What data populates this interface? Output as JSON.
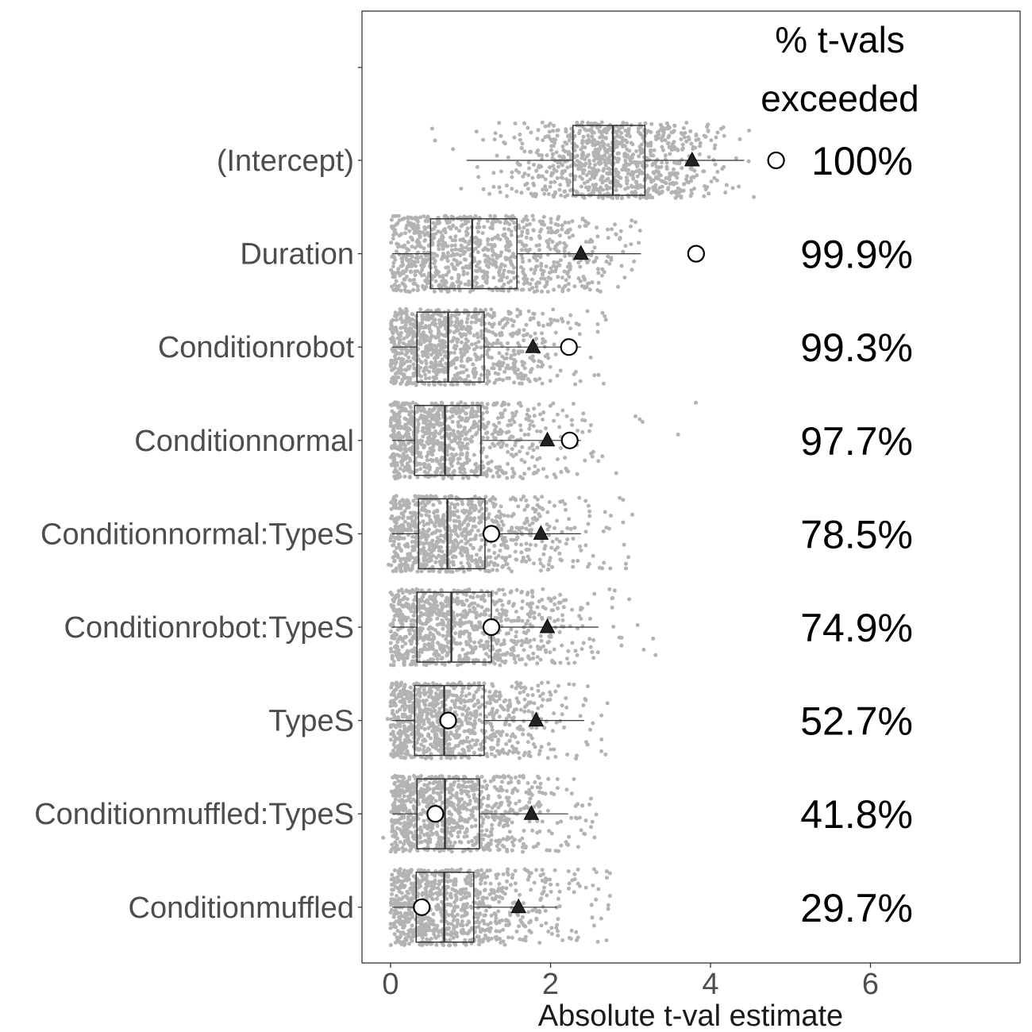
{
  "chart_data": {
    "type": "boxplot",
    "title": "",
    "xlabel": "Absolute t-val estimate",
    "ylabel": "",
    "xlim": [
      -0.35,
      7.85
    ],
    "x_ticks": [
      0,
      2,
      4,
      6
    ],
    "grid": false,
    "legend_title_lines": [
      "% t-vals",
      "exceeded"
    ],
    "colors": {
      "points": "#b3b3b3",
      "box": "#333333",
      "mean_marker": "#222222",
      "observed_marker_fill": "#ffffff",
      "text": "#000000",
      "tick_text": "#4d4d4d"
    },
    "terms": [
      {
        "label": "(Intercept)",
        "q1": 2.28,
        "median": 2.78,
        "q3": 3.18,
        "whisker_lo": 0.95,
        "whisker_hi": 4.42,
        "mean_marker": 3.77,
        "observed": 4.82,
        "spread_lo": 0.02,
        "spread_hi": 4.55,
        "pct_exceeded": "100%"
      },
      {
        "label": "Duration",
        "q1": 0.5,
        "median": 1.02,
        "q3": 1.58,
        "whisker_lo": 0.02,
        "whisker_hi": 3.13,
        "mean_marker": 2.38,
        "observed": 3.82,
        "spread_lo": 0.0,
        "spread_hi": 3.12,
        "pct_exceeded": "99.9%"
      },
      {
        "label": "Conditionrobot",
        "q1": 0.33,
        "median": 0.72,
        "q3": 1.17,
        "whisker_lo": 0.02,
        "whisker_hi": 2.38,
        "mean_marker": 1.78,
        "observed": 2.23,
        "spread_lo": 0.0,
        "spread_hi": 2.7,
        "pct_exceeded": "99.3%"
      },
      {
        "label": "Conditionnormal",
        "q1": 0.3,
        "median": 0.68,
        "q3": 1.13,
        "whisker_lo": 0.02,
        "whisker_hi": 2.38,
        "mean_marker": 1.96,
        "observed": 2.24,
        "spread_lo": 0.0,
        "spread_hi": 3.9,
        "pct_exceeded": "97.7%"
      },
      {
        "label": "Conditionnormal:TypeS",
        "q1": 0.35,
        "median": 0.71,
        "q3": 1.18,
        "whisker_lo": 0.02,
        "whisker_hi": 2.38,
        "mean_marker": 1.88,
        "observed": 1.26,
        "spread_lo": 0.0,
        "spread_hi": 3.05,
        "pct_exceeded": "78.5%"
      },
      {
        "label": "Conditionrobot:TypeS",
        "q1": 0.33,
        "median": 0.76,
        "q3": 1.26,
        "whisker_lo": 0.02,
        "whisker_hi": 2.6,
        "mean_marker": 1.96,
        "observed": 1.26,
        "spread_lo": 0.0,
        "spread_hi": 3.45,
        "pct_exceeded": "74.9%"
      },
      {
        "label": "TypeS",
        "q1": 0.3,
        "median": 0.67,
        "q3": 1.17,
        "whisker_lo": 0.02,
        "whisker_hi": 2.42,
        "mean_marker": 1.82,
        "observed": 0.72,
        "spread_lo": 0.0,
        "spread_hi": 2.75,
        "pct_exceeded": "52.7%"
      },
      {
        "label": "Conditionmuffled:TypeS",
        "q1": 0.33,
        "median": 0.68,
        "q3": 1.11,
        "whisker_lo": 0.02,
        "whisker_hi": 2.22,
        "mean_marker": 1.76,
        "observed": 0.56,
        "spread_lo": 0.0,
        "spread_hi": 2.6,
        "pct_exceeded": "41.8%"
      },
      {
        "label": "Conditionmuffled",
        "q1": 0.32,
        "median": 0.67,
        "q3": 1.04,
        "whisker_lo": 0.02,
        "whisker_hi": 2.08,
        "mean_marker": 1.6,
        "observed": 0.39,
        "spread_lo": 0.0,
        "spread_hi": 2.95,
        "pct_exceeded": "29.7%"
      }
    ]
  }
}
